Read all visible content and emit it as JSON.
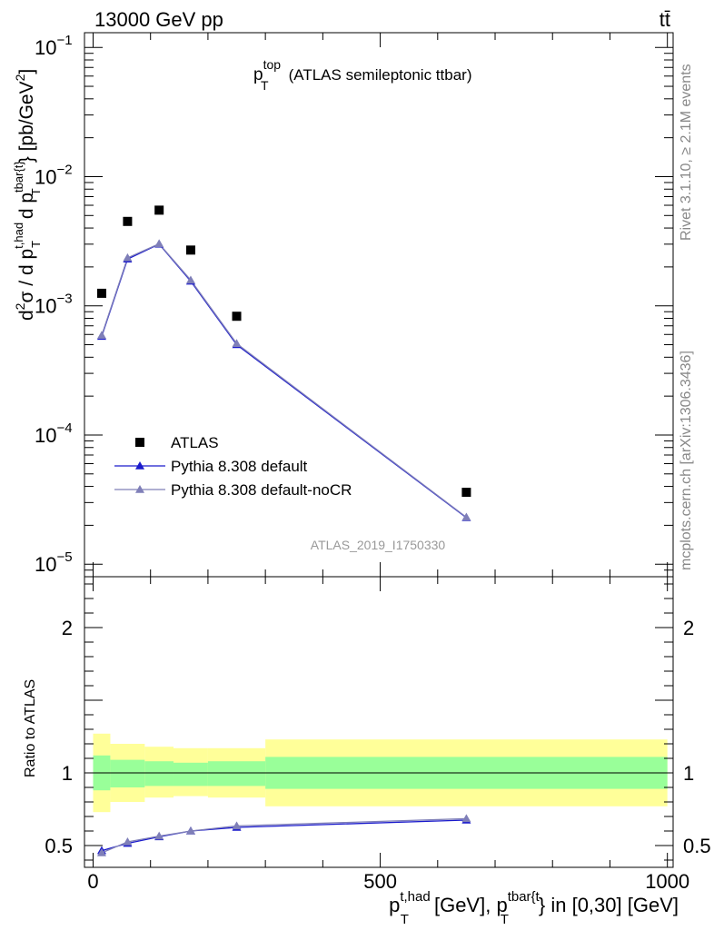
{
  "header": {
    "energy_label": "13000 GeV pp",
    "process_label": "tt̄",
    "plot_title_main": "p",
    "plot_title_sup": "top",
    "plot_title_sub": "T",
    "plot_title_rest": "(ATLAS semileptonic ttbar)",
    "side_rivet": "Rivet 3.1.10, ≥ 2.1M events",
    "side_mcplots": "mcplots.cern.ch [arXiv:1306.3436]",
    "watermark": "ATLAS_2019_I1750330"
  },
  "colors": {
    "atlas": "#000000",
    "pythia_default": "#1a1acc",
    "pythia_nocr": "#7f7fb8",
    "band_stat": "#99ff99",
    "band_total": "#ffff99"
  },
  "chart_data": [
    {
      "type": "scatter",
      "title": "",
      "ylabel": "d²σ / d p_T^{t,had} d p_T^{tbar{t}} [pb/GeV²]",
      "yscale": "log",
      "ylim": [
        8e-06,
        0.13
      ],
      "xlim": [
        -15,
        1010
      ],
      "yticks": [
        {
          "label": "10",
          "sup": "−5"
        },
        {
          "label": "10",
          "sup": "−4"
        },
        {
          "label": "10",
          "sup": "−3"
        },
        {
          "label": "10",
          "sup": "−2"
        },
        {
          "label": "10",
          "sup": "−1"
        }
      ],
      "legend": {
        "position": "middle-left",
        "entries": [
          "ATLAS",
          "Pythia 8.308 default",
          "Pythia 8.308 default-noCR"
        ]
      },
      "series": [
        {
          "name": "ATLAS",
          "marker": "square",
          "x": [
            15,
            60,
            115,
            170,
            250,
            650
          ],
          "y": [
            0.00125,
            0.0045,
            0.0055,
            0.0027,
            0.00083,
            3.6e-05
          ]
        },
        {
          "name": "Pythia 8.308 default",
          "marker": "triangle",
          "x": [
            15,
            60,
            115,
            170,
            250,
            650
          ],
          "y": [
            0.00058,
            0.0023,
            0.003,
            0.00155,
            0.0005,
            2.29e-05
          ]
        },
        {
          "name": "Pythia 8.308 default-noCR",
          "marker": "triangle",
          "x": [
            15,
            60,
            115,
            170,
            250,
            650
          ],
          "y": [
            0.00059,
            0.00235,
            0.00302,
            0.00158,
            0.00051,
            2.31e-05
          ]
        }
      ]
    },
    {
      "type": "line",
      "ylabel": "Ratio to ATLAS",
      "xlabel": "p_T^{t,had} [GeV], p_T^{tbar{t}} in [0,30] [GeV]",
      "xlim": [
        -15,
        1010
      ],
      "ylim": [
        0.35,
        2.35
      ],
      "xticks": [
        "0",
        "500",
        "1000"
      ],
      "yticks": [
        "0.5",
        "1",
        "2"
      ],
      "bins": [
        {
          "lo": 0,
          "hi": 30,
          "stat_lo": 0.88,
          "stat_hi": 1.12,
          "tot_lo": 0.73,
          "tot_hi": 1.27
        },
        {
          "lo": 30,
          "hi": 90,
          "stat_lo": 0.9,
          "stat_hi": 1.09,
          "tot_lo": 0.8,
          "tot_hi": 1.2
        },
        {
          "lo": 90,
          "hi": 140,
          "stat_lo": 0.91,
          "stat_hi": 1.08,
          "tot_lo": 0.83,
          "tot_hi": 1.18
        },
        {
          "lo": 140,
          "hi": 200,
          "stat_lo": 0.91,
          "stat_hi": 1.07,
          "tot_lo": 0.84,
          "tot_hi": 1.17
        },
        {
          "lo": 200,
          "hi": 300,
          "stat_lo": 0.91,
          "stat_hi": 1.08,
          "tot_lo": 0.83,
          "tot_hi": 1.17
        },
        {
          "lo": 300,
          "hi": 1000,
          "stat_lo": 0.89,
          "stat_hi": 1.11,
          "tot_lo": 0.77,
          "tot_hi": 1.23
        }
      ],
      "series": [
        {
          "name": "Pythia 8.308 default",
          "x": [
            15,
            60,
            115,
            170,
            250,
            650
          ],
          "y": [
            0.465,
            0.515,
            0.56,
            0.6,
            0.625,
            0.675
          ]
        },
        {
          "name": "Pythia 8.308 default-noCR",
          "x": [
            15,
            60,
            115,
            170,
            250,
            650
          ],
          "y": [
            0.45,
            0.525,
            0.565,
            0.6,
            0.635,
            0.685
          ]
        }
      ]
    }
  ]
}
